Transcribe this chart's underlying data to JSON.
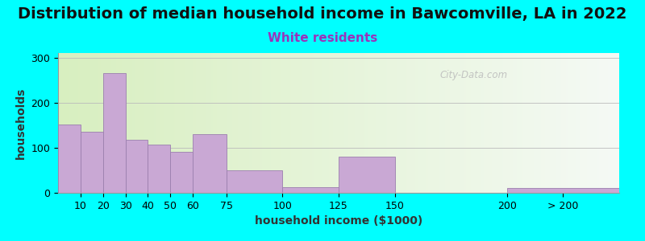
{
  "title": "Distribution of median household income in Bawcomville, LA in 2022",
  "subtitle": "White residents",
  "xlabel": "household income ($1000)",
  "ylabel": "households",
  "background_outer": "#00FFFF",
  "bar_color": "#C9A8D4",
  "bar_edge_color": "#9B7FAE",
  "bin_edges": [
    0,
    10,
    20,
    30,
    40,
    50,
    60,
    75,
    100,
    125,
    150,
    200,
    250
  ],
  "bin_labels": [
    "10",
    "20",
    "30",
    "40",
    "50",
    "60",
    "75",
    "100",
    "125",
    "150",
    "200",
    "> 200"
  ],
  "tick_positions": [
    10,
    20,
    30,
    40,
    50,
    60,
    75,
    100,
    125,
    150,
    200,
    225
  ],
  "values": [
    152,
    135,
    265,
    117,
    107,
    90,
    130,
    50,
    13,
    80,
    0,
    10
  ],
  "ylim": [
    0,
    310
  ],
  "yticks": [
    0,
    100,
    200,
    300
  ],
  "title_fontsize": 14,
  "subtitle_fontsize": 11,
  "subtitle_color": "#9933BB",
  "watermark": "City-Data.com",
  "plot_bg_left_color": "#D8EFC0",
  "plot_bg_right_color": "#F5FAF5",
  "xlim": [
    0,
    250
  ]
}
